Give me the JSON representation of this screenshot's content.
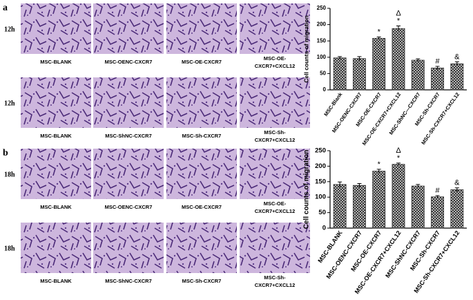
{
  "panels": [
    {
      "label": "a",
      "rows": [
        {
          "time": "12h",
          "captions": [
            [
              "MSC-BLANK"
            ],
            [
              "MSC-OENC-CXCR7"
            ],
            [
              "MSC-OE-CXCR7"
            ],
            [
              "MSC-OE-",
              "CXCR7+CXCL12"
            ]
          ]
        },
        {
          "time": "12h",
          "captions": [
            [
              "MSC-BLANK"
            ],
            [
              "MSC-ShNC-CXCR7"
            ],
            [
              "MSC-Sh-CXCR7"
            ],
            [
              "MSC-Sh-",
              "CXCR7+CXCL12"
            ]
          ]
        }
      ]
    },
    {
      "label": "b",
      "rows": [
        {
          "time": "18h",
          "captions": [
            [
              "MSC-BLANK"
            ],
            [
              "MSC-OENC-CXCR7"
            ],
            [
              "MSC-OE-CXCR7"
            ],
            [
              "MSC-OE-",
              "CXCR7+CXCL12"
            ]
          ]
        },
        {
          "time": "18h",
          "captions": [
            [
              "MSC-BLANK"
            ],
            [
              "MSC-ShNC-CXCR7"
            ],
            [
              "MSC-Sh-CXCR7"
            ],
            [
              "MSC-Sh-",
              "CXCR7+CXCL12"
            ]
          ]
        }
      ]
    }
  ],
  "chart_data": [
    {
      "type": "bar",
      "y_label": "Cell counts of migration",
      "categories": [
        "MSC-Blank",
        "MSC-OENC-CXCR7",
        "MSC-OE-CXCR7",
        "MSC-OE-CXCR7+CXCL12",
        "MSC-ShNC—CXCR7",
        "MSC-Sh-CXCR7",
        "MSC-Sh-CXCR7+CXCL12"
      ],
      "values": [
        98,
        96,
        158,
        188,
        91,
        67,
        80
      ],
      "errors": [
        4,
        6,
        4,
        8,
        4,
        5,
        6
      ],
      "annotations": [
        [],
        [],
        [
          "*"
        ],
        [
          "Δ",
          "*"
        ],
        [],
        [
          "#"
        ],
        [
          "&"
        ]
      ],
      "color": "#333333",
      "ylim": [
        0,
        250
      ],
      "yticks": [
        0,
        50,
        100,
        150,
        200,
        250
      ]
    },
    {
      "type": "bar",
      "y_label": "Cell counts of migration",
      "categories": [
        "MSC-BLANK",
        "MSC-OENC-CXCR7",
        "MSC-OE-CXCR7",
        "MSC-OE-CXCR7+CXCL12",
        "MSC-ShNC-CXCR7",
        "MSC-Sh-CXCR7",
        "MSC-Sh-CXCR7+CXCL12"
      ],
      "values": [
        141,
        138,
        184,
        206,
        136,
        101,
        124
      ],
      "errors": [
        8,
        6,
        6,
        4,
        5,
        4,
        6
      ],
      "annotations": [
        [],
        [],
        [
          "*"
        ],
        [
          "Δ",
          "*"
        ],
        [],
        [
          "#"
        ],
        [
          "&"
        ]
      ],
      "color": "#333333",
      "ylim": [
        0,
        250
      ],
      "yticks": [
        0,
        50,
        100,
        150,
        200,
        250
      ]
    }
  ]
}
